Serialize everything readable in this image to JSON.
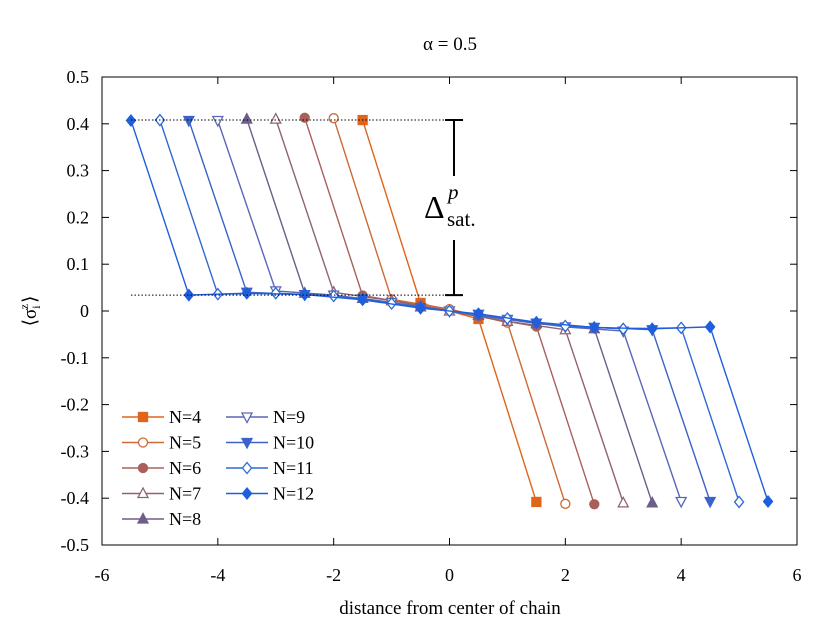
{
  "chart_data": {
    "type": "line",
    "title": "α = 0.5",
    "xlabel": "distance from center of chain",
    "ylabel": "⟨σ",
    "ylabel_sub": "i",
    "ylabel_sup": "z",
    "ylabel_close": "⟩",
    "xlim": [
      -6,
      6
    ],
    "ylim": [
      -0.5,
      0.5
    ],
    "xticks": [
      -6,
      -4,
      -2,
      0,
      2,
      4,
      6
    ],
    "yticks": [
      -0.5,
      -0.4,
      -0.3,
      -0.2,
      -0.1,
      0,
      0.1,
      0.2,
      0.3,
      0.4,
      0.5
    ],
    "ytick_labels": [
      "-0.5",
      "-0.4",
      "-0.3",
      "-0.2",
      "-0.1",
      "0",
      "0.1",
      "0.2",
      "0.3",
      "0.4",
      "0.5"
    ],
    "grid": false,
    "legend_position": "bottom-left",
    "annotation": {
      "symbol": "Δ",
      "superscript": "p",
      "subscript": "sat.",
      "upper_level": 0.408,
      "lower_level": 0.034
    },
    "series": [
      {
        "name": "N=4",
        "color": "#e0641a",
        "marker": "square",
        "filled": true,
        "x": [
          -1.5,
          -0.5,
          0.5,
          1.5
        ],
        "y": [
          0.408,
          0.017,
          -0.017,
          -0.408
        ]
      },
      {
        "name": "N=5",
        "color": "#cd6a36",
        "marker": "circle",
        "filled": false,
        "x": [
          -2,
          -1,
          0,
          1,
          2
        ],
        "y": [
          0.412,
          0.025,
          0.004,
          -0.025,
          -0.412
        ]
      },
      {
        "name": "N=6",
        "color": "#a8615a",
        "marker": "circle",
        "filled": true,
        "x": [
          -2.5,
          -1.5,
          -0.5,
          0.5,
          1.5,
          2.5
        ],
        "y": [
          0.413,
          0.033,
          0.012,
          -0.012,
          -0.033,
          -0.413
        ]
      },
      {
        "name": "N=7",
        "color": "#8c6473",
        "marker": "triangle-up",
        "filled": false,
        "x": [
          -3,
          -2,
          -1,
          0,
          1,
          2,
          3
        ],
        "y": [
          0.41,
          0.04,
          0.022,
          0,
          -0.022,
          -0.04,
          -0.41
        ]
      },
      {
        "name": "N=8",
        "color": "#6d5e8a",
        "marker": "triangle-up",
        "filled": true,
        "x": [
          -3.5,
          -2.5,
          -1.5,
          -0.5,
          0.5,
          1.5,
          2.5,
          3.5
        ],
        "y": [
          0.41,
          0.038,
          0.027,
          0.009,
          -0.009,
          -0.027,
          -0.038,
          -0.41
        ]
      },
      {
        "name": "N=9",
        "color": "#5a67b8",
        "marker": "triangle-down",
        "filled": false,
        "x": [
          -4,
          -3,
          -2,
          -1,
          0,
          1,
          2,
          3,
          4
        ],
        "y": [
          0.407,
          0.043,
          0.034,
          0.018,
          0,
          -0.018,
          -0.034,
          -0.043,
          -0.407
        ]
      },
      {
        "name": "N=10",
        "color": "#3a62c8",
        "marker": "triangle-down",
        "filled": true,
        "x": [
          -4.5,
          -3.5,
          -2.5,
          -1.5,
          -0.5,
          0.5,
          1.5,
          2.5,
          3.5,
          4.5
        ],
        "y": [
          0.407,
          0.04,
          0.035,
          0.026,
          0.007,
          -0.007,
          -0.026,
          -0.035,
          -0.04,
          -0.407
        ]
      },
      {
        "name": "N=11",
        "color": "#2e6ad4",
        "marker": "diamond",
        "filled": false,
        "x": [
          -5,
          -4,
          -3,
          -2,
          -1,
          0,
          1,
          2,
          3,
          4,
          5
        ],
        "y": [
          0.408,
          0.036,
          0.038,
          0.032,
          0.016,
          0,
          -0.016,
          -0.032,
          -0.038,
          -0.036,
          -0.408
        ]
      },
      {
        "name": "N=12",
        "color": "#1f5fdd",
        "marker": "diamond",
        "filled": true,
        "x": [
          -5.5,
          -4.5,
          -3.5,
          -2.5,
          -1.5,
          -0.5,
          0.5,
          1.5,
          2.5,
          3.5,
          4.5,
          5.5
        ],
        "y": [
          0.407,
          0.034,
          0.038,
          0.035,
          0.024,
          0.006,
          -0.006,
          -0.024,
          -0.035,
          -0.038,
          -0.034,
          -0.407
        ]
      }
    ]
  }
}
